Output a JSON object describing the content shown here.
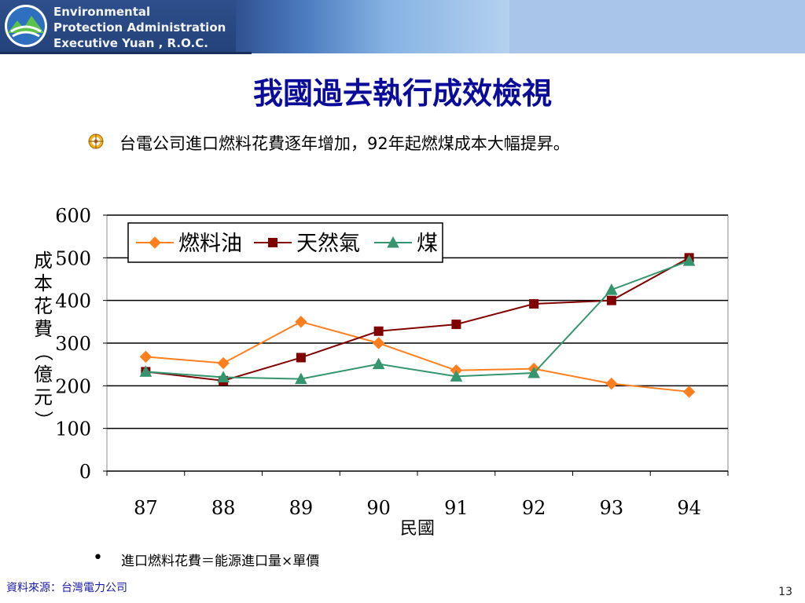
{
  "header": {
    "agency_lines": [
      "Environmental",
      "Protection Administration",
      "Executive  Yuan , R.O.C."
    ]
  },
  "slide": {
    "title": "我國過去執行成效檢視",
    "bullet": "台電公司進口燃料花費逐年增加，92年起燃煤成本大幅提昇。",
    "footnote": "進口燃料花費＝能源進口量×單價",
    "source": "資料來源：台灣電力公司",
    "page_number": "13"
  },
  "icons": {
    "logo": "epa-logo-icon",
    "bullet": "target-bullet-icon",
    "footnote_bullet": "dot-bullet-icon"
  },
  "chart_data": {
    "type": "line",
    "categories": [
      "87",
      "88",
      "89",
      "90",
      "91",
      "92",
      "93",
      "94"
    ],
    "xlabel": "民國",
    "ylabel": "成本花費（億元）",
    "ylim": [
      0,
      600
    ],
    "yticks": [
      "0",
      "100",
      "200",
      "300",
      "400",
      "500",
      "600"
    ],
    "grid": true,
    "legend_position": "top-left",
    "series": [
      {
        "name": "燃料油",
        "values": [
          268,
          253,
          350,
          300,
          236,
          240,
          205,
          186
        ],
        "color": "#ff7f1e",
        "marker": "diamond"
      },
      {
        "name": "天然氣",
        "values": [
          233,
          212,
          266,
          328,
          344,
          392,
          400,
          500
        ],
        "color": "#800000",
        "marker": "square"
      },
      {
        "name": "煤",
        "values": [
          233,
          220,
          216,
          251,
          222,
          230,
          425,
          493
        ],
        "color": "#34956e",
        "marker": "triangle"
      }
    ]
  }
}
